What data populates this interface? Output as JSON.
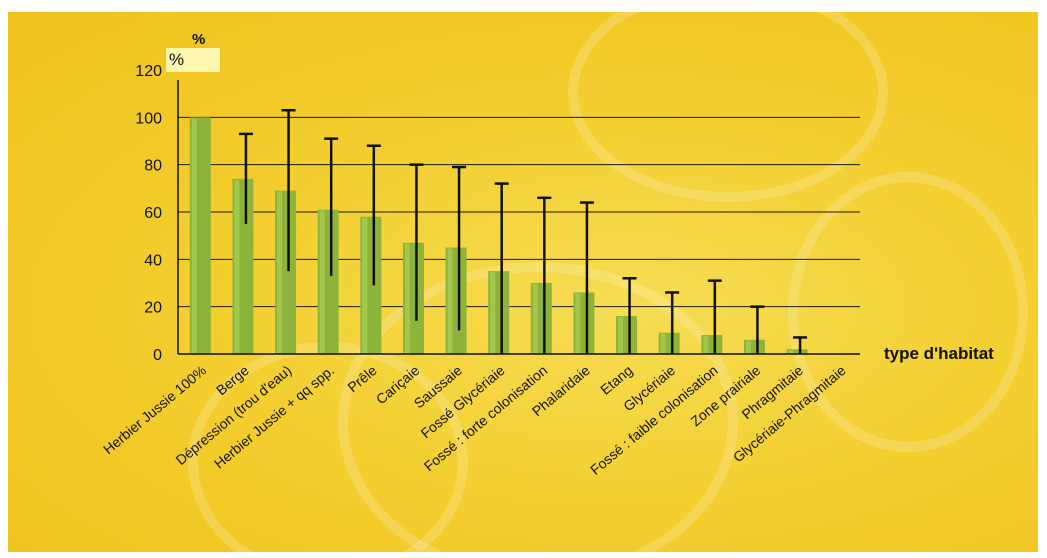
{
  "colors": {
    "background": "#f3cf30",
    "bar": "#8db33a",
    "bar_highlight": "#b3d35c",
    "gridline": "#1a1a1a",
    "error_bar": "#111111"
  },
  "chart_data": {
    "type": "bar",
    "title": "",
    "ylabel": "%",
    "unit_label": "%",
    "xlabel": "type d'habitat",
    "ylim": [
      0,
      120
    ],
    "yticks": [
      0,
      20,
      40,
      60,
      80,
      100,
      120
    ],
    "grid": "horizontal",
    "categories": [
      "Herbier Jussie 100%",
      "Berge",
      "Dépression (trou d'eau)",
      "Herbier Jussie + qq spp.",
      "Prêle",
      "Cariçaie",
      "Saussaie",
      "Fossé Glycériaie",
      "Fossé : forte colonisation",
      "Phalaridaie",
      "Etang",
      "Glycériaie",
      "Fossé : faible colonisation",
      "Zone prairiale",
      "Phragmitaie",
      "Glycériaie-Phragmitaie"
    ],
    "values": [
      100,
      74,
      69,
      61,
      58,
      47,
      45,
      35,
      30,
      26,
      16,
      9,
      8,
      6,
      2,
      0
    ],
    "error_bars": [
      null,
      [
        55,
        93
      ],
      [
        35,
        103
      ],
      [
        33,
        91
      ],
      [
        29,
        88
      ],
      [
        14,
        80
      ],
      [
        10,
        79
      ],
      [
        0,
        72
      ],
      [
        0,
        66
      ],
      [
        0,
        64
      ],
      [
        0,
        32
      ],
      [
        0,
        26
      ],
      [
        0,
        31
      ],
      [
        0,
        20
      ],
      [
        0,
        7
      ],
      null
    ]
  }
}
